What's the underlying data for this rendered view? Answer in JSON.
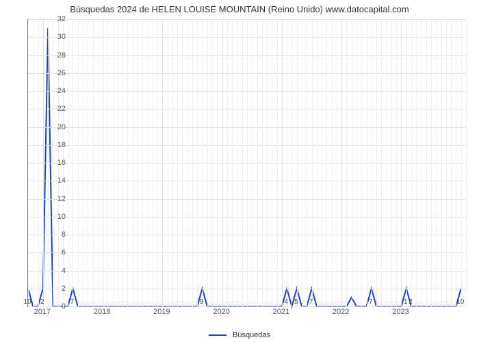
{
  "chart": {
    "type": "line",
    "title": "Búsquedas 2024 de HELEN LOUISE MOUNTAIN (Reino Unido) www.datocapital.com",
    "title_fontsize": 13,
    "background_color": "#ffffff",
    "grid_color": "#e0e0e0",
    "axis_color": "#777777",
    "line_color": "#1a3fd6",
    "line_width": 2,
    "xlim": [
      0,
      88
    ],
    "ylim": [
      0,
      32
    ],
    "ytick_step": 2,
    "yticks": [
      0,
      2,
      4,
      6,
      8,
      10,
      12,
      14,
      16,
      18,
      20,
      22,
      24,
      26,
      28,
      30,
      32
    ],
    "xticks": [
      {
        "pos": 3,
        "label": "2017"
      },
      {
        "pos": 15,
        "label": "2018"
      },
      {
        "pos": 27,
        "label": "2019"
      },
      {
        "pos": 39,
        "label": "2020"
      },
      {
        "pos": 51,
        "label": "2021"
      },
      {
        "pos": 63,
        "label": "2022"
      },
      {
        "pos": 75,
        "label": "2023"
      }
    ],
    "data": [
      {
        "x": 0,
        "y": 2,
        "label": "10"
      },
      {
        "x": 1,
        "y": 0
      },
      {
        "x": 2,
        "y": 0
      },
      {
        "x": 3,
        "y": 2,
        "label": "2"
      },
      {
        "x": 4,
        "y": 31
      },
      {
        "x": 5,
        "y": 0
      },
      {
        "x": 6,
        "y": 0
      },
      {
        "x": 7,
        "y": 0
      },
      {
        "x": 8,
        "y": 0
      },
      {
        "x": 9,
        "y": 2,
        "label": "7"
      },
      {
        "x": 10,
        "y": 0
      },
      {
        "x": 11,
        "y": 0
      },
      {
        "x": 12,
        "y": 0
      },
      {
        "x": 13,
        "y": 0
      },
      {
        "x": 14,
        "y": 0
      },
      {
        "x": 15,
        "y": 0
      },
      {
        "x": 16,
        "y": 0
      },
      {
        "x": 17,
        "y": 0
      },
      {
        "x": 18,
        "y": 0
      },
      {
        "x": 19,
        "y": 0
      },
      {
        "x": 20,
        "y": 0
      },
      {
        "x": 21,
        "y": 0
      },
      {
        "x": 22,
        "y": 0
      },
      {
        "x": 23,
        "y": 0
      },
      {
        "x": 24,
        "y": 0
      },
      {
        "x": 25,
        "y": 0
      },
      {
        "x": 26,
        "y": 0
      },
      {
        "x": 27,
        "y": 0
      },
      {
        "x": 28,
        "y": 0
      },
      {
        "x": 29,
        "y": 0
      },
      {
        "x": 30,
        "y": 0
      },
      {
        "x": 31,
        "y": 0
      },
      {
        "x": 32,
        "y": 0
      },
      {
        "x": 33,
        "y": 0
      },
      {
        "x": 34,
        "y": 0
      },
      {
        "x": 35,
        "y": 2,
        "label": "9"
      },
      {
        "x": 36,
        "y": 0
      },
      {
        "x": 37,
        "y": 0
      },
      {
        "x": 38,
        "y": 0
      },
      {
        "x": 39,
        "y": 0
      },
      {
        "x": 40,
        "y": 0
      },
      {
        "x": 41,
        "y": 0
      },
      {
        "x": 42,
        "y": 0
      },
      {
        "x": 43,
        "y": 0
      },
      {
        "x": 44,
        "y": 0
      },
      {
        "x": 45,
        "y": 0
      },
      {
        "x": 46,
        "y": 0
      },
      {
        "x": 47,
        "y": 0
      },
      {
        "x": 48,
        "y": 0
      },
      {
        "x": 49,
        "y": 0
      },
      {
        "x": 50,
        "y": 0
      },
      {
        "x": 51,
        "y": 0
      },
      {
        "x": 52,
        "y": 2,
        "label": "4"
      },
      {
        "x": 53,
        "y": 0
      },
      {
        "x": 54,
        "y": 2,
        "label": "5"
      },
      {
        "x": 55,
        "y": 0,
        "label": ""
      },
      {
        "x": 56,
        "y": 0
      },
      {
        "x": 57,
        "y": 2,
        "label": "7"
      },
      {
        "x": 58,
        "y": 0
      },
      {
        "x": 59,
        "y": 0
      },
      {
        "x": 60,
        "y": 0
      },
      {
        "x": 61,
        "y": 0
      },
      {
        "x": 62,
        "y": 0
      },
      {
        "x": 63,
        "y": 0
      },
      {
        "x": 64,
        "y": 0
      },
      {
        "x": 65,
        "y": 1
      },
      {
        "x": 66,
        "y": 0
      },
      {
        "x": 67,
        "y": 0
      },
      {
        "x": 68,
        "y": 0
      },
      {
        "x": 69,
        "y": 2,
        "label": "7"
      },
      {
        "x": 70,
        "y": 0
      },
      {
        "x": 71,
        "y": 0
      },
      {
        "x": 72,
        "y": 0
      },
      {
        "x": 73,
        "y": 0
      },
      {
        "x": 74,
        "y": 0
      },
      {
        "x": 75,
        "y": 0
      },
      {
        "x": 76,
        "y": 2,
        "label": "1"
      },
      {
        "x": 77,
        "y": 0,
        "label": "2"
      },
      {
        "x": 78,
        "y": 0
      },
      {
        "x": 79,
        "y": 0
      },
      {
        "x": 80,
        "y": 0
      },
      {
        "x": 81,
        "y": 0
      },
      {
        "x": 82,
        "y": 0
      },
      {
        "x": 83,
        "y": 0
      },
      {
        "x": 84,
        "y": 0
      },
      {
        "x": 85,
        "y": 0
      },
      {
        "x": 86,
        "y": 0
      },
      {
        "x": 87,
        "y": 2,
        "label": "10"
      }
    ],
    "legend_label": "Búsquedas"
  }
}
